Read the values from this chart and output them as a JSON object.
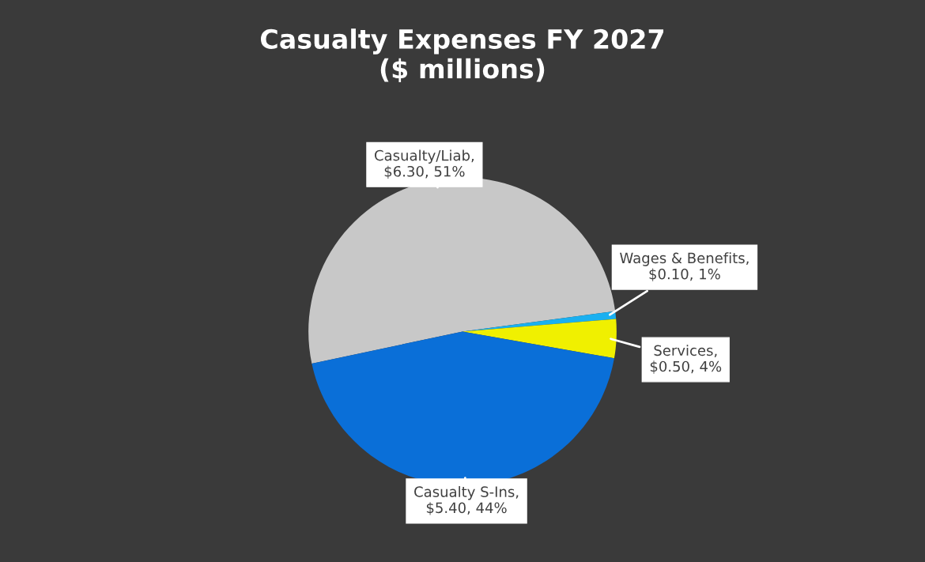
{
  "chart_data": {
    "type": "pie",
    "title": "Casualty Expenses FY 2027\n($ millions)",
    "categories": [
      "Casualty/Liab",
      "Wages & Benefits",
      "Services",
      "Casualty S-Ins"
    ],
    "values": [
      6.3,
      0.1,
      0.5,
      5.4
    ],
    "colors": [
      "#c8c8c8",
      "#1ab0f0",
      "#f0f000",
      "#0a6fd8"
    ],
    "value_labels": [
      ", $6.30, 51%",
      ", $0.10, 1%",
      ", $0.50, 4%",
      ", $5.40, 44%"
    ]
  }
}
